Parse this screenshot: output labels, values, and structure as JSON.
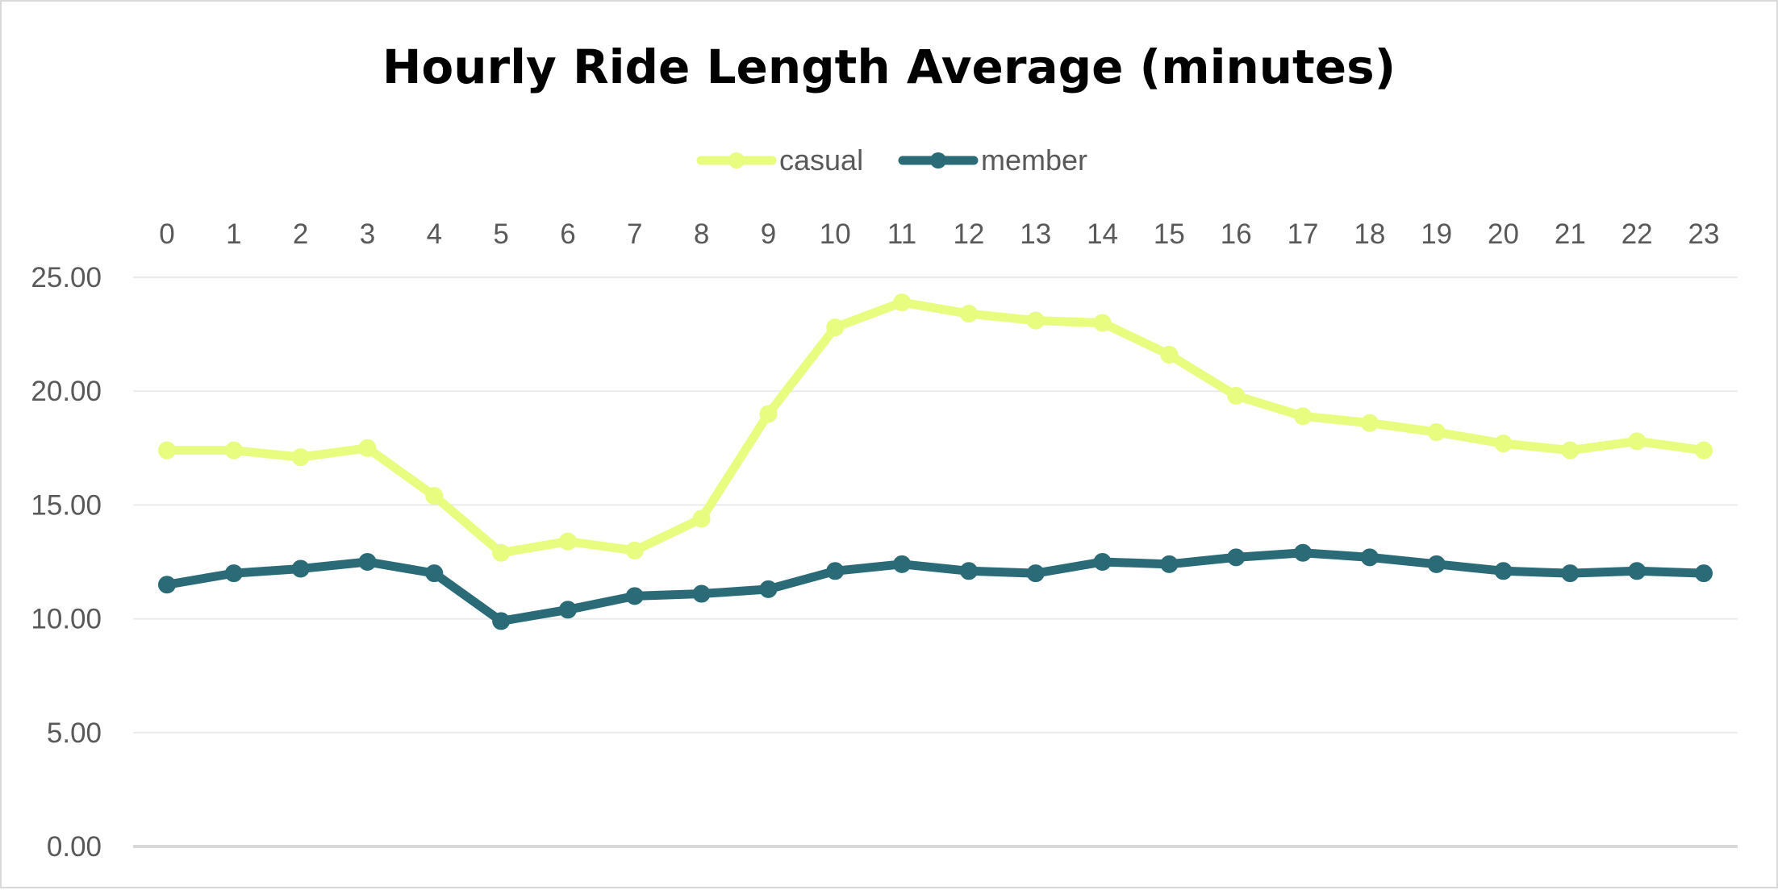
{
  "chart_data": {
    "type": "line",
    "title": "Hourly Ride Length Average (minutes)",
    "xlabel": "",
    "ylabel": "",
    "categories": [
      "0",
      "1",
      "2",
      "3",
      "4",
      "5",
      "6",
      "7",
      "8",
      "9",
      "10",
      "11",
      "12",
      "13",
      "14",
      "15",
      "16",
      "17",
      "18",
      "19",
      "20",
      "21",
      "22",
      "23"
    ],
    "series": [
      {
        "name": "casual",
        "color": "#e8fc7f",
        "values": [
          17.4,
          17.4,
          17.1,
          17.5,
          15.4,
          12.9,
          13.4,
          13.0,
          14.4,
          19.0,
          22.8,
          23.9,
          23.4,
          23.1,
          23.0,
          21.6,
          19.8,
          18.9,
          18.6,
          18.2,
          17.7,
          17.4,
          17.8,
          17.4
        ]
      },
      {
        "name": "member",
        "color": "#2a6b77",
        "values": [
          11.5,
          12.0,
          12.2,
          12.5,
          12.0,
          9.9,
          10.4,
          11.0,
          11.1,
          11.3,
          12.1,
          12.4,
          12.1,
          12.0,
          12.5,
          12.4,
          12.7,
          12.9,
          12.7,
          12.4,
          12.1,
          12.0,
          12.1,
          12.0
        ]
      }
    ],
    "ylim": [
      0,
      25
    ],
    "y_ticks": [
      "0.00",
      "5.00",
      "10.00",
      "15.00",
      "20.00",
      "25.00"
    ],
    "x_axis_position": "top",
    "grid": true,
    "legend": "top-center"
  },
  "colors": {
    "gridline": "#ebebeb",
    "baseline": "#d9d9d9",
    "axis_text": "#595959",
    "background": "#ffffff"
  }
}
